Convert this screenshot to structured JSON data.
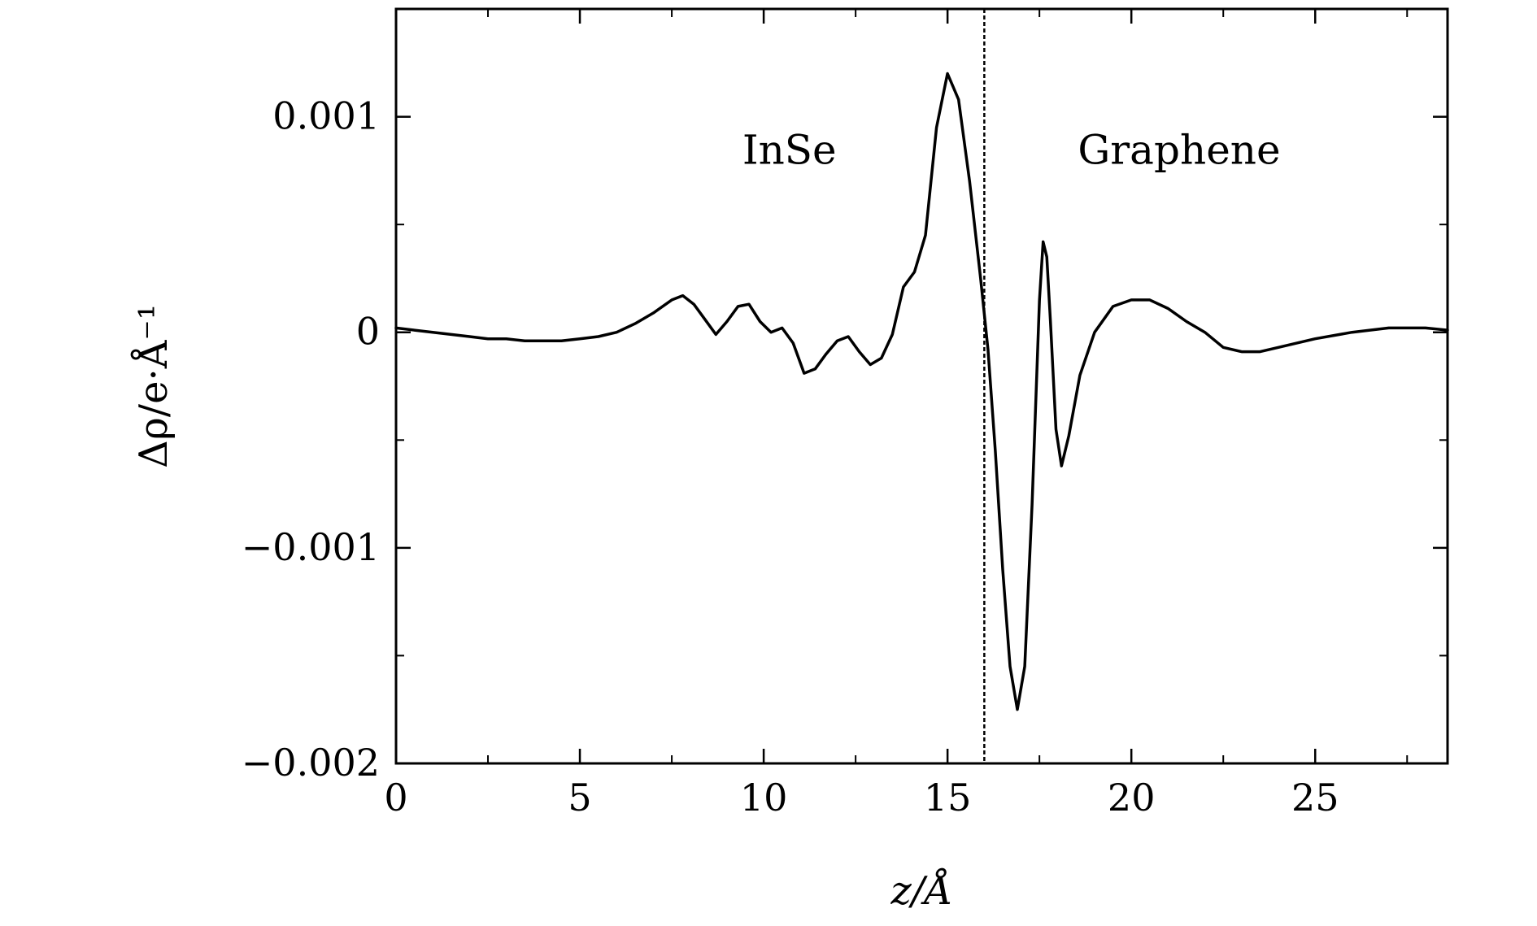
{
  "chart_data": {
    "type": "line",
    "title": "",
    "xlabel": "z/Å",
    "ylabel": "Δρ/e·Å⁻¹",
    "xlim": [
      0,
      28.6
    ],
    "ylim": [
      -0.002,
      0.0015
    ],
    "grid": false,
    "x_ticks": [
      0,
      5,
      10,
      15,
      20,
      25
    ],
    "x_tick_labels": [
      "0",
      "5",
      "10",
      "15",
      "20",
      "25"
    ],
    "x_minor_ticks": [
      2.5,
      7.5,
      12.5,
      17.5,
      22.5,
      27.5
    ],
    "y_ticks": [
      0.001,
      0,
      -0.001,
      -0.002
    ],
    "y_tick_labels": [
      "0.001",
      "0",
      "−0.001",
      "−0.002"
    ],
    "y_minor_ticks": [
      0.0005,
      -0.0005,
      -0.0015
    ],
    "separator_x": 16.0,
    "annotations": [
      {
        "text": "InSe",
        "x": 10.7,
        "y": 0.00085
      },
      {
        "text": "Graphene",
        "x": 21.3,
        "y": 0.00085
      }
    ],
    "series": [
      {
        "points": [
          [
            0.0,
            2e-05
          ],
          [
            0.5,
            1e-05
          ],
          [
            1.0,
            0.0
          ],
          [
            1.5,
            -1e-05
          ],
          [
            2.0,
            -2e-05
          ],
          [
            2.5,
            -3e-05
          ],
          [
            3.0,
            -3e-05
          ],
          [
            3.5,
            -4e-05
          ],
          [
            4.0,
            -4e-05
          ],
          [
            4.5,
            -4e-05
          ],
          [
            5.0,
            -3e-05
          ],
          [
            5.5,
            -2e-05
          ],
          [
            6.0,
            0.0
          ],
          [
            6.5,
            4e-05
          ],
          [
            7.0,
            9e-05
          ],
          [
            7.5,
            0.00015
          ],
          [
            7.8,
            0.00017
          ],
          [
            8.1,
            0.00013
          ],
          [
            8.4,
            6e-05
          ],
          [
            8.7,
            -1e-05
          ],
          [
            9.0,
            5e-05
          ],
          [
            9.3,
            0.00012
          ],
          [
            9.6,
            0.00013
          ],
          [
            9.9,
            5e-05
          ],
          [
            10.2,
            0.0
          ],
          [
            10.5,
            2e-05
          ],
          [
            10.8,
            -5e-05
          ],
          [
            11.1,
            -0.00019
          ],
          [
            11.4,
            -0.00017
          ],
          [
            11.7,
            -0.0001
          ],
          [
            12.0,
            -4e-05
          ],
          [
            12.3,
            -2e-05
          ],
          [
            12.6,
            -9e-05
          ],
          [
            12.9,
            -0.00015
          ],
          [
            13.2,
            -0.00012
          ],
          [
            13.5,
            -1e-05
          ],
          [
            13.8,
            0.00021
          ],
          [
            14.1,
            0.00028
          ],
          [
            14.4,
            0.00045
          ],
          [
            14.7,
            0.00095
          ],
          [
            15.0,
            0.0012
          ],
          [
            15.3,
            0.00108
          ],
          [
            15.6,
            0.0007
          ],
          [
            15.9,
            0.00025
          ],
          [
            16.1,
            -8e-05
          ],
          [
            16.3,
            -0.00055
          ],
          [
            16.5,
            -0.0011
          ],
          [
            16.7,
            -0.00155
          ],
          [
            16.9,
            -0.00175
          ],
          [
            17.1,
            -0.00155
          ],
          [
            17.3,
            -0.0008
          ],
          [
            17.5,
            0.00015
          ],
          [
            17.6,
            0.00042
          ],
          [
            17.7,
            0.00035
          ],
          [
            17.8,
            5e-05
          ],
          [
            17.95,
            -0.00045
          ],
          [
            18.1,
            -0.00062
          ],
          [
            18.3,
            -0.00048
          ],
          [
            18.6,
            -0.0002
          ],
          [
            19.0,
            0.0
          ],
          [
            19.5,
            0.00012
          ],
          [
            20.0,
            0.00015
          ],
          [
            20.5,
            0.00015
          ],
          [
            21.0,
            0.00011
          ],
          [
            21.5,
            5e-05
          ],
          [
            22.0,
            0.0
          ],
          [
            22.5,
            -7e-05
          ],
          [
            23.0,
            -9e-05
          ],
          [
            23.5,
            -9e-05
          ],
          [
            24.0,
            -7e-05
          ],
          [
            25.0,
            -3e-05
          ],
          [
            26.0,
            0.0
          ],
          [
            27.0,
            2e-05
          ],
          [
            28.0,
            2e-05
          ],
          [
            28.6,
            1e-05
          ]
        ]
      }
    ]
  }
}
